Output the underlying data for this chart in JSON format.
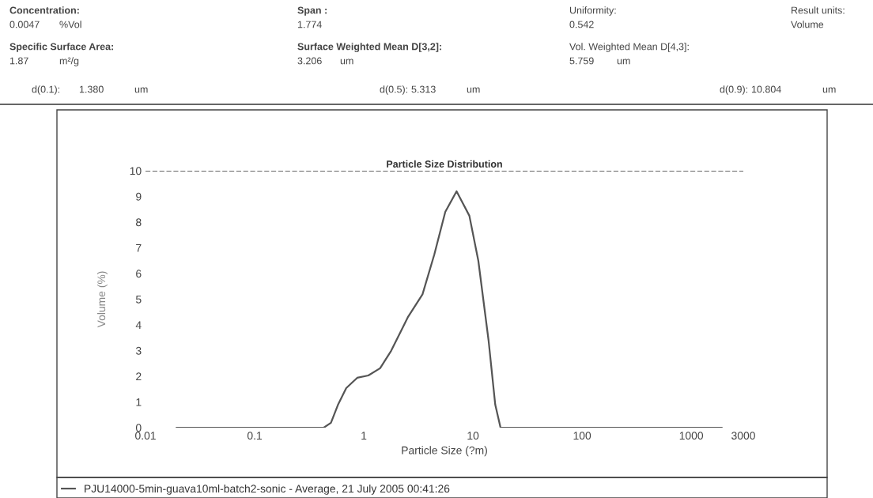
{
  "chart_data": {
    "type": "line",
    "title": "Particle Size Distribution",
    "xlabel": "Particle Size (?m)",
    "ylabel": "Volume (%)",
    "log": "x",
    "xlim": [
      0.01,
      3000
    ],
    "xticks": [
      0.01,
      0.1,
      1,
      10,
      100,
      1000,
      3000
    ],
    "ylim": [
      0,
      10
    ],
    "yticks": [
      0,
      1,
      2,
      3,
      4,
      5,
      6,
      7,
      8,
      9,
      10
    ],
    "grid": false,
    "legend": "bottom",
    "marker": "none",
    "line_style": "solid",
    "series": [
      {
        "name": "PJU14000-5min-guava10ml-batch2-sonic - Average, 21 July 2005 00:41:26",
        "color": "#555555",
        "x": [
          0.0193,
          0.43,
          0.5,
          0.58,
          0.69,
          0.87,
          1.1,
          1.41,
          1.78,
          2.55,
          3.45,
          4.42,
          5.58,
          7.08,
          9.27,
          11.2,
          13.9,
          16.0,
          17.9,
          1900
        ],
        "values": [
          0,
          0,
          0.19,
          0.89,
          1.54,
          1.94,
          2.03,
          2.31,
          2.99,
          4.32,
          5.19,
          6.73,
          8.4,
          9.2,
          8.25,
          6.5,
          3.4,
          0.9,
          0,
          0
        ]
      }
    ],
    "ref_lines": [
      {
        "axis": "y",
        "value": 10,
        "color": "#333333",
        "line_style": "dashed"
      }
    ],
    "annotations": [
      "Concentration:",
      "0.0047",
      "%Vol",
      "Span :",
      "1.774",
      "Uniformity:",
      "0.542",
      "Result units:",
      "Volume",
      "Specific Surface Area:",
      "1.87",
      "m²/g",
      "Surface Weighted Mean D[3,2]:",
      "3.206",
      "um",
      "Vol. Weighted Mean D[4,3]:",
      "5.759",
      "um",
      "d(0.1):",
      "1.380",
      "um",
      "d(0.5):",
      "5.313",
      "um",
      "d(0.9):",
      "10.804",
      "um"
    ]
  }
}
